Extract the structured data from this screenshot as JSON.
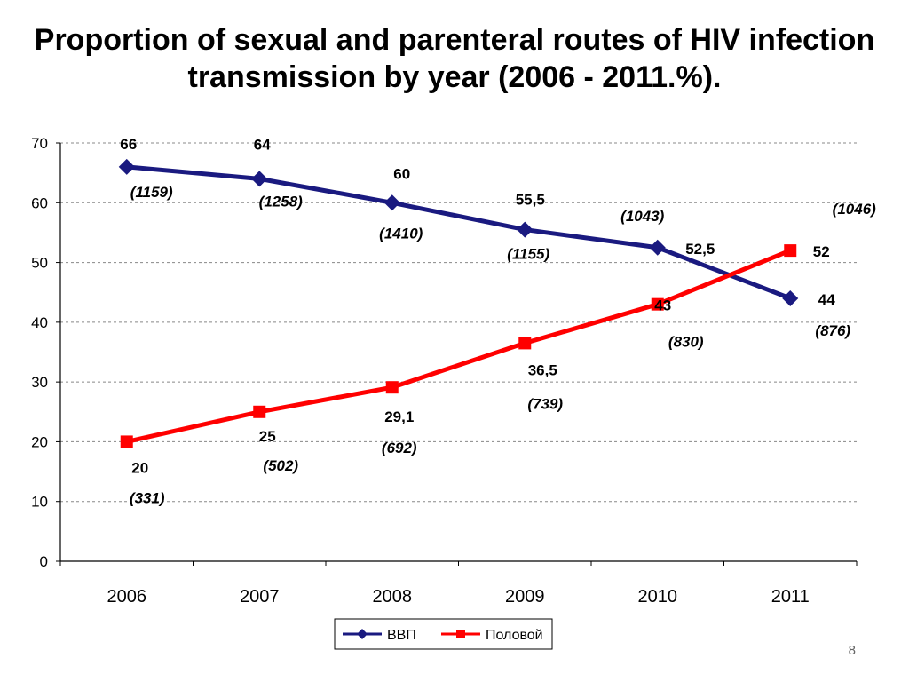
{
  "slide": {
    "title_line1": "Proportion of sexual and parenteral routes of HIV infection",
    "title_line2": "transmission by year (2006 - 2011.%).",
    "page_number": "8"
  },
  "chart_data": {
    "type": "line",
    "title": "",
    "xlabel": "",
    "ylabel": "",
    "categories": [
      "2006",
      "2007",
      "2008",
      "2009",
      "2010",
      "2011"
    ],
    "ylim": [
      0,
      70
    ],
    "yticks": [
      0,
      10,
      20,
      30,
      40,
      50,
      60,
      70
    ],
    "grid": true,
    "legend_position": "bottom",
    "series": [
      {
        "name": "ВВП",
        "color": "#1a1a80",
        "marker": "diamond",
        "values": [
          66,
          64,
          60,
          55.5,
          52.5,
          44
        ],
        "value_labels": [
          "66",
          "64",
          "60",
          "55,5",
          "52,5",
          "44"
        ],
        "count_labels": [
          "(1159)",
          "(1258)",
          "(1410)",
          "(1155)",
          "(1043)",
          "(876)"
        ]
      },
      {
        "name": "Половой",
        "color": "#ff0000",
        "marker": "square",
        "values": [
          20,
          25,
          29.1,
          36.5,
          43,
          52
        ],
        "value_labels": [
          "20",
          "25",
          "29,1",
          "36,5",
          "43",
          "52"
        ],
        "count_labels": [
          "(331)",
          "(502)",
          "(692)",
          "(739)",
          "(830)",
          "(1046)"
        ]
      }
    ]
  }
}
